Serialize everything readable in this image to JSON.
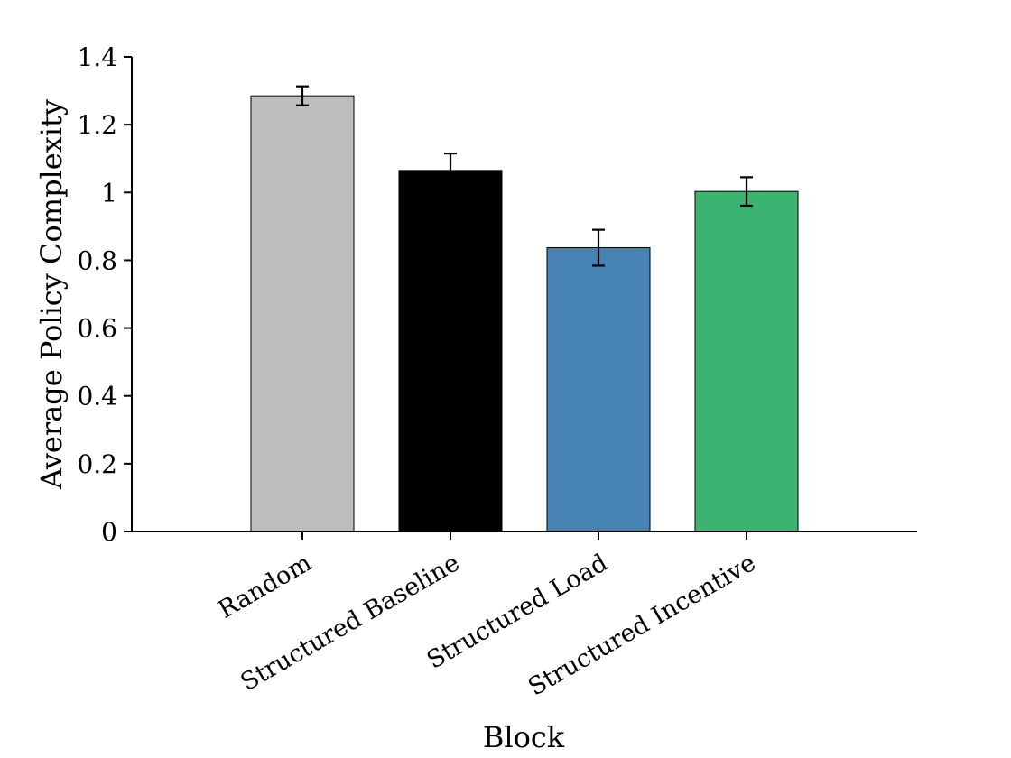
{
  "chart_data": {
    "type": "bar",
    "categories": [
      "Random",
      "Structured Baseline",
      "Structured Load",
      "Structured Incentive"
    ],
    "values": [
      1.285,
      1.065,
      0.837,
      1.003
    ],
    "errors": [
      0.028,
      0.05,
      0.053,
      0.042
    ],
    "colors": [
      "#bdbdbd",
      "#000000",
      "#4682b4",
      "#3cb371"
    ],
    "xlabel": "Block",
    "ylabel": "Average Policy Complexity",
    "ylim": [
      0,
      1.4
    ],
    "yticks": [
      0,
      0.2,
      0.4,
      0.6,
      0.8,
      1,
      1.2,
      1.4
    ],
    "ytick_labels": [
      "0",
      "0.2",
      "0.4",
      "0.6",
      "0.8",
      "1",
      "1.2",
      "1.4"
    ],
    "grid": false,
    "legend": "none"
  }
}
